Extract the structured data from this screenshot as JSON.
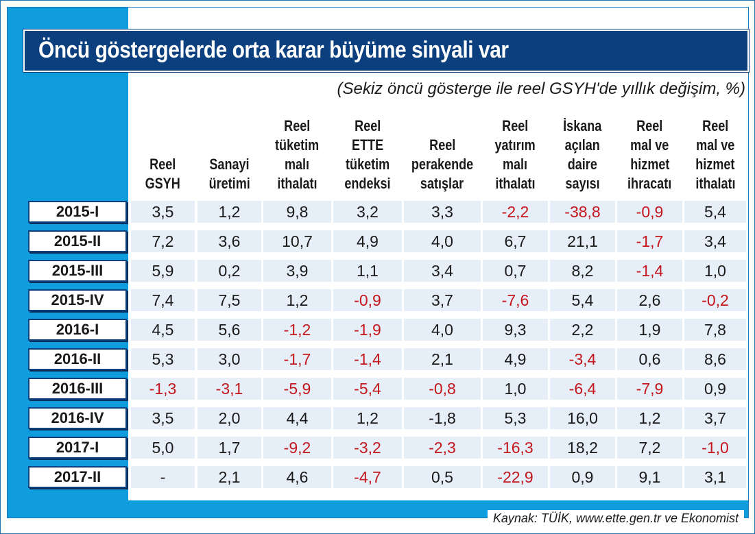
{
  "chart_data": {
    "type": "table",
    "title": "Öncü göstergelerde orta karar büyüme sinyali var",
    "subtitle": "(Sekiz öncü gösterge ile reel GSYH'de yıllık değişim, %)",
    "columns": [
      [
        "Reel",
        "GSYH"
      ],
      [
        "Sanayi",
        "üretimi"
      ],
      [
        "Reel",
        "tüketim",
        "malı",
        "ithalatı"
      ],
      [
        "Reel",
        "ETTE",
        "tüketim",
        "endeksi"
      ],
      [
        "Reel",
        "perakende",
        "satışlar"
      ],
      [
        "Reel",
        "yatırım",
        "malı",
        "ithalatı"
      ],
      [
        "İskana",
        "açılan",
        "daire",
        "sayısı"
      ],
      [
        "Reel",
        "mal ve",
        "hizmet",
        "ihracatı"
      ],
      [
        "Reel",
        "mal ve",
        "hizmet",
        "ithalatı"
      ]
    ],
    "rows": [
      {
        "label": "2015-I",
        "values": [
          "3,5",
          "1,2",
          "9,8",
          "3,2",
          "3,3",
          "-2,2",
          "-38,8",
          "-0,9",
          "5,4"
        ]
      },
      {
        "label": "2015-II",
        "values": [
          "7,2",
          "3,6",
          "10,7",
          "4,9",
          "4,0",
          "6,7",
          "21,1",
          "-1,7",
          "3,4"
        ]
      },
      {
        "label": "2015-III",
        "values": [
          "5,9",
          "0,2",
          "3,9",
          "1,1",
          "3,4",
          "0,7",
          "8,2",
          "-1,4",
          "1,0"
        ]
      },
      {
        "label": "2015-IV",
        "values": [
          "7,4",
          "7,5",
          "1,2",
          "-0,9",
          "3,7",
          "-7,6",
          "5,4",
          "2,6",
          "-0,2"
        ]
      },
      {
        "label": "2016-I",
        "values": [
          "4,5",
          "5,6",
          "-1,2",
          "-1,9",
          "4,0",
          "9,3",
          "2,2",
          "1,9",
          "7,8"
        ]
      },
      {
        "label": "2016-II",
        "values": [
          "5,3",
          "3,0",
          "-1,7",
          "-1,4",
          "2,1",
          "4,9",
          "-3,4",
          "0,6",
          "8,6"
        ]
      },
      {
        "label": "2016-III",
        "values": [
          "-1,3",
          "-3,1",
          "-5,9",
          "-5,4",
          "-0,8",
          "1,0",
          "-6,4",
          "-7,9",
          "0,9"
        ]
      },
      {
        "label": "2016-IV",
        "values": [
          "3,5",
          "2,0",
          "4,4",
          "1,2",
          "-1,8",
          "5,3",
          "16,0",
          "1,2",
          "3,7"
        ]
      },
      {
        "label": "2017-I",
        "values": [
          "5,0",
          "1,7",
          "-9,2",
          "-3,2",
          "-2,3",
          "-16,3",
          "18,2",
          "7,2",
          "-1,0"
        ]
      },
      {
        "label": "2017-II",
        "values": [
          "-",
          "2,1",
          "4,6",
          "-4,7",
          "0,5",
          "-22,9",
          "0,9",
          "9,1",
          "3,1"
        ]
      }
    ],
    "red_cells": [
      [
        0,
        5
      ],
      [
        0,
        6
      ],
      [
        0,
        7
      ],
      [
        1,
        7
      ],
      [
        2,
        7
      ],
      [
        3,
        3
      ],
      [
        3,
        5
      ],
      [
        3,
        8
      ],
      [
        4,
        2
      ],
      [
        4,
        3
      ],
      [
        5,
        2
      ],
      [
        5,
        3
      ],
      [
        5,
        6
      ],
      [
        6,
        0
      ],
      [
        6,
        1
      ],
      [
        6,
        2
      ],
      [
        6,
        3
      ],
      [
        6,
        4
      ],
      [
        6,
        6
      ],
      [
        6,
        7
      ],
      [
        8,
        2
      ],
      [
        8,
        3
      ],
      [
        8,
        4
      ],
      [
        8,
        5
      ],
      [
        8,
        8
      ],
      [
        9,
        3
      ],
      [
        9,
        5
      ]
    ],
    "source": "Kaynak: TÜİK, www.ette.gen.tr ve Ekonomist"
  },
  "colors": {
    "frame_blue": "#109ddd",
    "title_bg": "#0b3f7e",
    "cell_bg": "#e6eef7",
    "negative_red": "#c4161c"
  }
}
